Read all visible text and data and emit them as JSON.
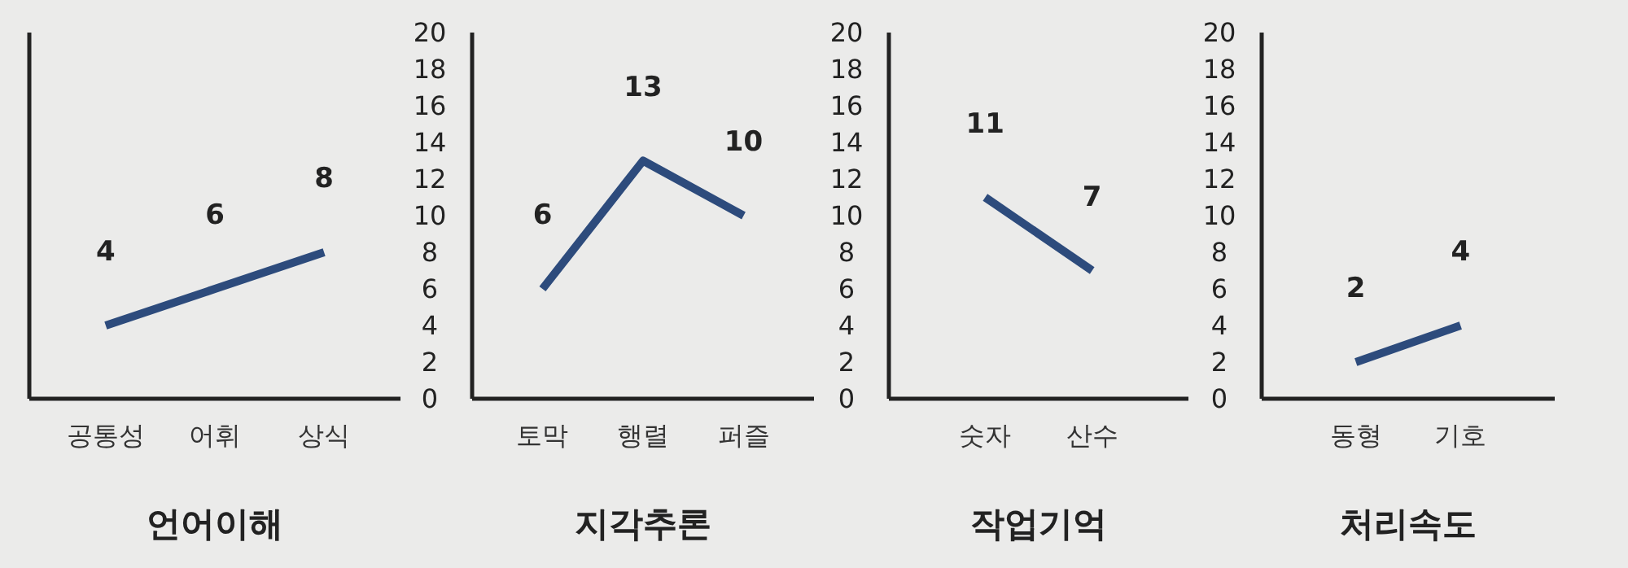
{
  "chart_data": [
    {
      "type": "line",
      "title": "언어이해",
      "categories": [
        "공통성",
        "어휘",
        "상식"
      ],
      "series": [
        {
          "color": "#2d4b7c",
          "values": [
            4,
            6,
            8
          ]
        }
      ],
      "ylim": [
        0,
        20
      ],
      "yticks": [
        0,
        2,
        4,
        6,
        8,
        10,
        12,
        14,
        16,
        18,
        20
      ],
      "tick_labels": "x",
      "data_labels": true,
      "marker": "none"
    },
    {
      "type": "line",
      "title": "지각추론",
      "categories": [
        "토막",
        "행렬",
        "퍼즐"
      ],
      "series": [
        {
          "color": "#2d4b7c",
          "values": [
            6,
            13,
            10
          ]
        }
      ],
      "ylim": [
        0,
        20
      ],
      "yticks": [
        0,
        2,
        4,
        6,
        8,
        10,
        12,
        14,
        16,
        18,
        20
      ],
      "data_labels": true,
      "marker": "none"
    },
    {
      "type": "line",
      "title": "작업기억",
      "categories": [
        "숫자",
        "산수"
      ],
      "series": [
        {
          "color": "#2d4b7c",
          "values": [
            11,
            7
          ]
        }
      ],
      "ylim": [
        0,
        20
      ],
      "yticks": [
        0,
        2,
        4,
        6,
        8,
        10,
        12,
        14,
        16,
        18,
        20
      ],
      "data_labels": true,
      "marker": "none"
    },
    {
      "type": "line",
      "title": "처리속도",
      "categories": [
        "동형",
        "기호"
      ],
      "series": [
        {
          "color": "#2d4b7c",
          "values": [
            2,
            4
          ]
        }
      ],
      "ylim": [
        0,
        20
      ],
      "yticks": [
        0,
        2,
        4,
        6,
        8,
        10,
        12,
        14,
        16,
        18,
        20
      ],
      "data_labels": true,
      "marker": "none"
    }
  ]
}
